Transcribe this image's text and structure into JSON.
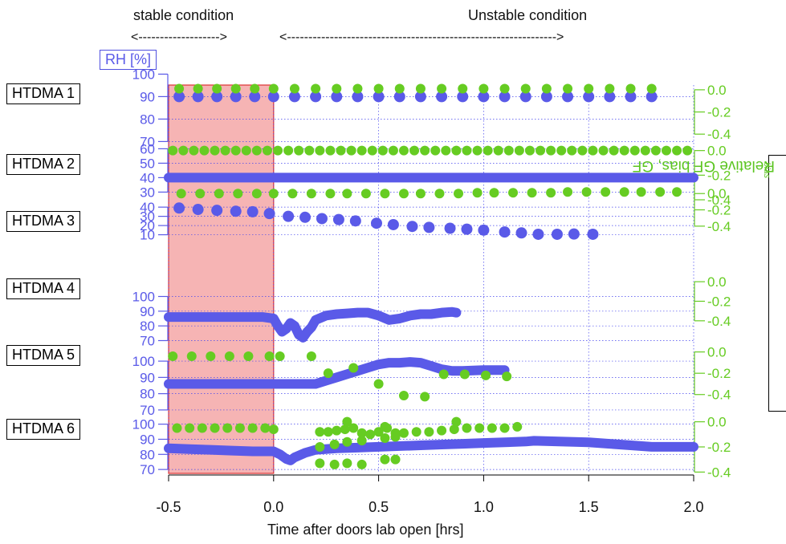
{
  "header": {
    "stable_label": "stable condition",
    "unstable_label": "Unstable condition",
    "stable_arrow": "<------------------->",
    "unstable_arrow": "<--------------------------------------------------------------->"
  },
  "y_left_label": "RH [%]",
  "y_right_label": "Relative GF bias, GF",
  "y_right_label_sub": "bias",
  "colors": {
    "rh": "#5a5ae8",
    "gf": "#66cc22",
    "shade": "#f6b4b4",
    "shade_edge": "#dd3333",
    "grid": "#4444ee"
  },
  "chart_data": {
    "type": "scatter",
    "xlabel": "Time after doors lab open [hrs]",
    "xlim": [
      -0.5,
      2.0
    ],
    "xticks": [
      -0.5,
      0.0,
      0.5,
      1.0,
      1.5,
      2.0
    ],
    "xtick_labels": [
      "-0.5",
      "0.0",
      "0.5",
      "1.0",
      "1.5",
      "2.0"
    ],
    "shaded_region": {
      "from": -0.5,
      "to": 0.0,
      "label": "stable condition"
    },
    "grid": true,
    "panels": [
      {
        "name": "HTDMA 1",
        "rh_ylim": [
          63,
          103
        ],
        "rh_ticks": [
          70,
          80,
          90,
          100
        ],
        "rh_tick_labels": [
          "70",
          "80",
          "90",
          "100"
        ],
        "gf_ylim": [
          -0.5,
          0.05
        ],
        "gf_ticks": [
          0.0,
          -0.2,
          -0.4
        ],
        "gf_tick_labels": [
          "0.0",
          "-0.2",
          "-0.4"
        ],
        "rh": {
          "x": [
            -0.45,
            -0.36,
            -0.27,
            -0.18,
            -0.09,
            0.0,
            0.1,
            0.2,
            0.3,
            0.4,
            0.5,
            0.6,
            0.7,
            0.8,
            0.9,
            1.0,
            1.1,
            1.2,
            1.3,
            1.4,
            1.5,
            1.6,
            1.7,
            1.8
          ],
          "y": [
            90,
            90,
            90,
            90,
            90,
            90,
            90,
            90,
            90,
            90,
            90,
            90,
            90,
            90,
            90,
            90,
            90,
            90,
            90,
            90,
            90,
            90,
            90,
            90
          ]
        },
        "gf": {
          "x": [
            -0.45,
            -0.36,
            -0.27,
            -0.18,
            -0.09,
            0.0,
            0.1,
            0.2,
            0.3,
            0.4,
            0.5,
            0.6,
            0.7,
            0.8,
            0.9,
            1.0,
            1.1,
            1.2,
            1.3,
            1.4,
            1.5,
            1.6,
            1.7,
            1.8
          ],
          "y": [
            0.01,
            0.01,
            0.01,
            0.01,
            0.01,
            0.01,
            0.01,
            0.01,
            0.01,
            0.01,
            0.01,
            0.01,
            0.01,
            0.01,
            0.01,
            0.01,
            0.01,
            0.01,
            0.01,
            0.01,
            0.01,
            0.01,
            0.01,
            0.01
          ]
        }
      },
      {
        "name": "HTDMA 2",
        "rh_ylim": [
          28,
          63
        ],
        "rh_ticks": [
          30,
          40,
          50,
          60
        ],
        "rh_tick_labels": [
          "30",
          "40",
          "50",
          "60"
        ],
        "gf_ylim": [
          -0.4,
          0.05
        ],
        "gf_ticks": [
          0.0,
          -0.2,
          -0.4
        ],
        "gf_tick_labels": [
          "0.0",
          "-0.2",
          "-0.4"
        ],
        "rh_line": true,
        "rh": {
          "x": [
            -0.5,
            -0.4,
            -0.3,
            -0.2,
            -0.1,
            0.0,
            0.1,
            0.2,
            0.3,
            0.4,
            0.5,
            0.6,
            0.7,
            0.8,
            0.9,
            1.0,
            1.1,
            1.2,
            1.3,
            1.4,
            1.5,
            1.6,
            1.7,
            1.8,
            1.9,
            2.0
          ],
          "y": [
            40,
            40,
            40,
            40,
            40,
            40,
            40,
            40,
            40,
            40,
            40,
            40,
            40,
            40,
            40,
            40,
            40,
            40,
            40,
            40,
            40,
            40,
            40,
            40,
            40,
            40
          ]
        },
        "gf": {
          "x": [
            -0.48,
            -0.43,
            -0.38,
            -0.33,
            -0.28,
            -0.23,
            -0.18,
            -0.13,
            -0.08,
            -0.03,
            0.02,
            0.07,
            0.12,
            0.17,
            0.22,
            0.27,
            0.32,
            0.37,
            0.42,
            0.47,
            0.52,
            0.57,
            0.62,
            0.67,
            0.72,
            0.77,
            0.82,
            0.87,
            0.92,
            0.97,
            1.02,
            1.07,
            1.12,
            1.17,
            1.22,
            1.27,
            1.32,
            1.37,
            1.42,
            1.47,
            1.52,
            1.57,
            1.62,
            1.67,
            1.72,
            1.77,
            1.82,
            1.87,
            1.92,
            1.97
          ],
          "y": [
            0.0,
            0.0,
            0.0,
            0.0,
            0.0,
            0.0,
            0.0,
            0.0,
            0.0,
            0.0,
            0.0,
            0.0,
            0.0,
            0.0,
            0.0,
            0.0,
            0.0,
            0.0,
            0.0,
            0.0,
            0.0,
            0.0,
            0.0,
            0.0,
            0.0,
            0.0,
            0.0,
            0.0,
            0.0,
            0.0,
            0.0,
            0.0,
            0.0,
            0.0,
            0.0,
            0.0,
            0.0,
            0.0,
            0.0,
            0.0,
            0.0,
            0.0,
            0.0,
            0.0,
            0.0,
            0.0,
            0.0,
            0.0,
            0.0,
            0.0
          ]
        }
      },
      {
        "name": "HTDMA 3",
        "rh_ylim": [
          7,
          41
        ],
        "rh_ticks": [
          10,
          20,
          30,
          40
        ],
        "rh_tick_labels": [
          "10",
          "20",
          "30",
          "40"
        ],
        "gf_ylim": [
          -0.5,
          0.15
        ],
        "gf_ticks": [
          0.0,
          -0.2,
          -0.4
        ],
        "gf_tick_labels": [
          "0.0",
          "-0.2",
          "-0.4"
        ],
        "rh": {
          "x": [
            -0.45,
            -0.36,
            -0.27,
            -0.18,
            -0.1,
            -0.02,
            0.07,
            0.15,
            0.23,
            0.31,
            0.39,
            0.49,
            0.57,
            0.66,
            0.74,
            0.84,
            0.92,
            1.0,
            1.1,
            1.18,
            1.26,
            1.35,
            1.43,
            1.52
          ],
          "y": [
            39,
            37.5,
            36.5,
            35.5,
            35,
            33,
            30,
            29,
            27.5,
            26.5,
            25,
            22.5,
            21,
            19,
            18,
            17,
            16,
            15,
            13,
            12,
            10.5,
            10.5,
            10.8,
            10.5
          ]
        },
        "gf": {
          "x": [
            -0.44,
            -0.35,
            -0.26,
            -0.17,
            -0.08,
            0.0,
            0.09,
            0.18,
            0.27,
            0.35,
            0.44,
            0.53,
            0.62,
            0.7,
            0.79,
            0.88,
            0.97,
            1.05,
            1.14,
            1.23,
            1.32,
            1.4,
            1.49,
            1.58,
            1.67,
            1.75,
            1.84,
            1.92
          ],
          "y": [
            0.0,
            0.0,
            0.0,
            0.0,
            0.0,
            0.0,
            0.0,
            0.0,
            0.0,
            0.0,
            0.0,
            0.0,
            0.0,
            0.0,
            0.0,
            0.0,
            0.01,
            0.01,
            0.01,
            0.01,
            0.01,
            0.02,
            0.02,
            0.02,
            0.02,
            0.02,
            0.02,
            0.02
          ]
        }
      },
      {
        "name": "HTDMA 4",
        "rh_ylim": [
          67,
          103
        ],
        "rh_ticks": [
          70,
          80,
          90,
          100
        ],
        "rh_tick_labels": [
          "70",
          "80",
          "90",
          "100"
        ],
        "gf_ylim": [
          -0.5,
          0.05
        ],
        "gf_ticks": [
          0.0,
          -0.2,
          -0.4
        ],
        "gf_tick_labels": [
          "0.0",
          "-0.2",
          "-0.4"
        ],
        "rh_line": true,
        "rh": {
          "x": [
            -0.5,
            -0.45,
            -0.4,
            -0.35,
            -0.3,
            -0.25,
            -0.2,
            -0.15,
            -0.1,
            -0.05,
            0.0,
            0.02,
            0.04,
            0.06,
            0.08,
            0.1,
            0.12,
            0.14,
            0.16,
            0.18,
            0.2,
            0.25,
            0.3,
            0.35,
            0.4,
            0.45,
            0.5,
            0.55,
            0.6,
            0.65,
            0.7,
            0.72,
            0.75,
            0.8,
            0.85,
            0.87
          ],
          "y": [
            86,
            86,
            86,
            86,
            86,
            86,
            86,
            86,
            86,
            86,
            85,
            80,
            76,
            78,
            82,
            80,
            74,
            72,
            76,
            79,
            84,
            87,
            88,
            88.5,
            89,
            89,
            87,
            84,
            85,
            87,
            88,
            88,
            88,
            89,
            89.5,
            89
          ]
        }
      },
      {
        "name": "HTDMA 5",
        "rh_ylim": [
          67,
          103
        ],
        "rh_ticks": [
          70,
          80,
          90,
          100
        ],
        "rh_tick_labels": [
          "70",
          "80",
          "90",
          "100"
        ],
        "gf_ylim": [
          -0.5,
          0.05
        ],
        "gf_ticks": [
          0.0,
          -0.2,
          -0.4
        ],
        "gf_tick_labels": [
          "0.0",
          "-0.2",
          "-0.4"
        ],
        "rh_line": true,
        "rh": {
          "x": [
            -0.5,
            -0.4,
            -0.3,
            -0.2,
            -0.1,
            0.0,
            0.1,
            0.2,
            0.25,
            0.3,
            0.35,
            0.4,
            0.45,
            0.5,
            0.55,
            0.6,
            0.65,
            0.7,
            0.75,
            0.8,
            0.85,
            0.9,
            1.0,
            1.1
          ],
          "y": [
            86,
            86,
            86,
            86,
            86,
            86,
            86,
            86,
            88,
            90,
            92,
            94,
            96,
            98,
            99,
            99,
            99.5,
            99,
            97,
            95,
            94,
            94,
            94.5,
            94.5
          ]
        },
        "gf": {
          "x": [
            -0.48,
            -0.39,
            -0.3,
            -0.21,
            -0.12,
            -0.02,
            0.03,
            0.18,
            0.26,
            0.38,
            0.5,
            0.62,
            0.72,
            0.81,
            0.91,
            1.01,
            1.11
          ],
          "y": [
            -0.04,
            -0.04,
            -0.04,
            -0.04,
            -0.04,
            -0.04,
            -0.04,
            -0.04,
            -0.2,
            -0.15,
            -0.3,
            -0.41,
            -0.42,
            -0.21,
            -0.21,
            -0.22,
            -0.23
          ]
        }
      },
      {
        "name": "HTDMA 6",
        "rh_ylim": [
          69,
          103
        ],
        "rh_ticks": [
          70,
          80,
          90,
          100
        ],
        "rh_tick_labels": [
          "70",
          "80",
          "90",
          "100"
        ],
        "gf_ylim": [
          -0.5,
          0.1
        ],
        "gf_ticks": [
          0.0,
          -0.2,
          -0.4
        ],
        "gf_tick_labels": [
          "0.0",
          "-0.2",
          "-0.4"
        ],
        "rh_line": true,
        "rh": {
          "x": [
            -0.5,
            -0.4,
            -0.3,
            -0.2,
            -0.1,
            0.0,
            0.03,
            0.06,
            0.08,
            0.1,
            0.15,
            0.2,
            0.3,
            0.4,
            0.5,
            0.6,
            0.7,
            0.8,
            0.9,
            1.0,
            1.1,
            1.2,
            1.24,
            1.5,
            1.6,
            1.7,
            1.8,
            1.9,
            2.0
          ],
          "y": [
            84,
            83.5,
            83,
            82.5,
            82,
            82,
            80,
            77,
            76,
            78,
            81,
            83,
            84,
            84.5,
            85,
            85.5,
            86,
            86.5,
            87,
            87.5,
            88,
            88.5,
            89,
            88,
            87,
            86,
            85,
            85,
            85
          ]
        },
        "gf": {
          "x": [
            -0.46,
            -0.4,
            -0.34,
            -0.28,
            -0.22,
            -0.16,
            -0.1,
            -0.04,
            0.0,
            0.22,
            0.26,
            0.3,
            0.34,
            0.38,
            0.42,
            0.46,
            0.5,
            0.54,
            0.58,
            0.62,
            0.68,
            0.74,
            0.8,
            0.86,
            0.92,
            0.98,
            1.04,
            1.1,
            1.16,
            0.22,
            0.29,
            0.35,
            0.42,
            0.53,
            0.58,
            0.22,
            0.29,
            0.35,
            0.42,
            0.53,
            0.58,
            0.35,
            0.87,
            0.53
          ],
          "y": [
            -0.05,
            -0.05,
            -0.05,
            -0.05,
            -0.05,
            -0.05,
            -0.05,
            -0.05,
            -0.06,
            -0.08,
            -0.08,
            -0.07,
            -0.06,
            -0.05,
            -0.09,
            -0.1,
            -0.08,
            -0.05,
            -0.09,
            -0.09,
            -0.08,
            -0.08,
            -0.07,
            -0.06,
            -0.05,
            -0.05,
            -0.05,
            -0.05,
            -0.04,
            -0.2,
            -0.18,
            -0.16,
            -0.15,
            -0.13,
            -0.12,
            -0.33,
            -0.34,
            -0.33,
            -0.34,
            -0.3,
            -0.3,
            0.0,
            0.0,
            -0.04
          ]
        }
      }
    ]
  }
}
